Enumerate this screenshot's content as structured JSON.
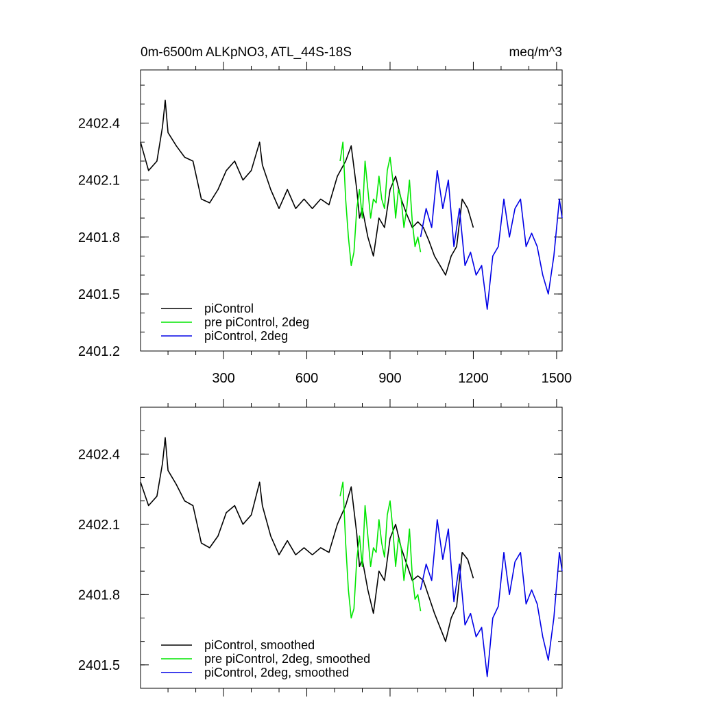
{
  "header": {
    "title": "0m-6500m ALKpNO3, ATL_44S-18S",
    "units": "meq/m^3"
  },
  "colors": {
    "piControl": "#000000",
    "pre_piControl_2deg": "#00e600",
    "piControl_2deg": "#0000e6"
  },
  "chart_data": [
    {
      "type": "line",
      "title": "0m-6500m ALKpNO3, ATL_44S-18S",
      "units_label": "meq/m^3",
      "xlim": [
        1,
        1520
      ],
      "ylim": [
        2401.2,
        2402.68
      ],
      "x_ticks": [
        300,
        600,
        900,
        1200,
        1500
      ],
      "x_tick_labels": [
        "300",
        "600",
        "900",
        "1200",
        "1500"
      ],
      "y_ticks": [
        2401.2,
        2401.5,
        2401.8,
        2402.1,
        2402.4
      ],
      "y_tick_labels": [
        "2401.2",
        "2401.5",
        "2401.8",
        "2402.1",
        "2402.4"
      ],
      "legend_position": "bottom-left",
      "series": [
        {
          "name": "piControl",
          "color": "#000000",
          "x": [
            1,
            30,
            60,
            80,
            90,
            100,
            130,
            160,
            190,
            220,
            250,
            280,
            310,
            340,
            370,
            400,
            430,
            440,
            470,
            500,
            530,
            560,
            590,
            620,
            650,
            680,
            710,
            740,
            760,
            780,
            790,
            800,
            820,
            840,
            860,
            880,
            900,
            920,
            940,
            960,
            980,
            1000,
            1020,
            1040,
            1060,
            1080,
            1100,
            1120,
            1140,
            1160,
            1180,
            1200
          ],
          "values": [
            2402.3,
            2402.15,
            2402.2,
            2402.38,
            2402.52,
            2402.35,
            2402.28,
            2402.22,
            2402.2,
            2402.0,
            2401.98,
            2402.05,
            2402.15,
            2402.2,
            2402.1,
            2402.15,
            2402.3,
            2402.18,
            2402.05,
            2401.95,
            2402.05,
            2401.95,
            2402.0,
            2401.95,
            2402.0,
            2401.97,
            2402.12,
            2402.2,
            2402.28,
            2402.05,
            2401.9,
            2401.95,
            2401.8,
            2401.7,
            2401.9,
            2401.85,
            2402.05,
            2402.12,
            2402.0,
            2401.92,
            2401.85,
            2401.88,
            2401.85,
            2401.78,
            2401.7,
            2401.65,
            2401.6,
            2401.7,
            2401.75,
            2402.0,
            2401.95,
            2401.85
          ]
        },
        {
          "name": "pre piControl, 2deg",
          "color": "#00e600",
          "x": [
            720,
            730,
            740,
            750,
            760,
            770,
            780,
            790,
            800,
            810,
            820,
            830,
            840,
            850,
            860,
            870,
            880,
            890,
            900,
            910,
            920,
            930,
            940,
            950,
            960,
            970,
            980,
            990,
            1000,
            1010
          ],
          "values": [
            2402.2,
            2402.3,
            2402.0,
            2401.8,
            2401.65,
            2401.72,
            2401.95,
            2402.05,
            2401.9,
            2402.2,
            2402.05,
            2401.9,
            2402.0,
            2401.98,
            2402.12,
            2402.0,
            2401.95,
            2402.15,
            2402.22,
            2402.1,
            2401.9,
            2402.05,
            2402.0,
            2401.85,
            2401.95,
            2402.1,
            2401.88,
            2401.75,
            2401.8,
            2401.72
          ]
        },
        {
          "name": "piControl, 2deg",
          "color": "#0000e6",
          "x": [
            1010,
            1030,
            1050,
            1070,
            1090,
            1110,
            1130,
            1150,
            1170,
            1190,
            1210,
            1230,
            1250,
            1270,
            1290,
            1310,
            1330,
            1350,
            1370,
            1390,
            1410,
            1430,
            1450,
            1470,
            1490,
            1510,
            1520
          ],
          "values": [
            2401.8,
            2401.95,
            2401.85,
            2402.15,
            2401.95,
            2402.1,
            2401.75,
            2401.95,
            2401.65,
            2401.72,
            2401.6,
            2401.65,
            2401.42,
            2401.7,
            2401.75,
            2402.0,
            2401.8,
            2401.95,
            2402.0,
            2401.75,
            2401.82,
            2401.75,
            2401.6,
            2401.5,
            2401.7,
            2402.0,
            2401.9
          ]
        }
      ]
    },
    {
      "type": "line",
      "xlim": [
        1,
        1520
      ],
      "ylim": [
        2401.4,
        2402.6
      ],
      "x_ticks": [
        300,
        600,
        900,
        1200,
        1500
      ],
      "y_ticks": [
        2401.5,
        2401.8,
        2402.1,
        2402.4
      ],
      "y_tick_labels": [
        "2401.5",
        "2401.8",
        "2402.1",
        "2402.4"
      ],
      "legend_position": "bottom-left",
      "series": [
        {
          "name": "piControl, smoothed",
          "color": "#000000",
          "x": [
            1,
            30,
            60,
            80,
            90,
            100,
            130,
            160,
            190,
            220,
            250,
            280,
            310,
            340,
            370,
            400,
            430,
            440,
            470,
            500,
            530,
            560,
            590,
            620,
            650,
            680,
            710,
            740,
            760,
            780,
            790,
            800,
            820,
            840,
            860,
            880,
            900,
            920,
            940,
            960,
            980,
            1000,
            1020,
            1040,
            1060,
            1080,
            1100,
            1120,
            1140,
            1160,
            1180,
            1200
          ],
          "values": [
            2402.28,
            2402.18,
            2402.22,
            2402.36,
            2402.47,
            2402.33,
            2402.27,
            2402.2,
            2402.18,
            2402.02,
            2402.0,
            2402.05,
            2402.15,
            2402.18,
            2402.1,
            2402.14,
            2402.28,
            2402.18,
            2402.05,
            2401.97,
            2402.03,
            2401.97,
            2402.0,
            2401.97,
            2402.0,
            2401.98,
            2402.1,
            2402.18,
            2402.26,
            2402.06,
            2401.92,
            2401.95,
            2401.82,
            2401.72,
            2401.9,
            2401.86,
            2402.04,
            2402.1,
            2402.0,
            2401.93,
            2401.86,
            2401.88,
            2401.86,
            2401.79,
            2401.72,
            2401.66,
            2401.6,
            2401.7,
            2401.75,
            2401.98,
            2401.95,
            2401.87
          ]
        },
        {
          "name": "pre piControl, 2deg, smoothed",
          "color": "#00e600",
          "x": [
            720,
            730,
            740,
            750,
            760,
            770,
            780,
            790,
            800,
            810,
            820,
            830,
            840,
            850,
            860,
            870,
            880,
            890,
            900,
            910,
            920,
            930,
            940,
            950,
            960,
            970,
            980,
            990,
            1000,
            1010
          ],
          "values": [
            2402.22,
            2402.28,
            2402.02,
            2401.82,
            2401.7,
            2401.74,
            2401.95,
            2402.05,
            2401.92,
            2402.18,
            2402.05,
            2401.92,
            2402.0,
            2401.98,
            2402.12,
            2402.02,
            2401.96,
            2402.14,
            2402.2,
            2402.08,
            2401.92,
            2402.04,
            2402.0,
            2401.86,
            2401.95,
            2402.08,
            2401.88,
            2401.78,
            2401.8,
            2401.73
          ]
        },
        {
          "name": "piControl, 2deg, smoothed",
          "color": "#0000e6",
          "x": [
            1010,
            1030,
            1050,
            1070,
            1090,
            1110,
            1130,
            1150,
            1170,
            1190,
            1210,
            1230,
            1250,
            1270,
            1290,
            1310,
            1330,
            1350,
            1370,
            1390,
            1410,
            1430,
            1450,
            1470,
            1490,
            1510,
            1520
          ],
          "values": [
            2401.82,
            2401.93,
            2401.86,
            2402.12,
            2401.95,
            2402.08,
            2401.77,
            2401.93,
            2401.67,
            2401.72,
            2401.62,
            2401.66,
            2401.45,
            2401.7,
            2401.75,
            2401.98,
            2401.8,
            2401.94,
            2401.98,
            2401.76,
            2401.82,
            2401.76,
            2401.62,
            2401.52,
            2401.7,
            2401.98,
            2401.9
          ]
        }
      ]
    }
  ]
}
